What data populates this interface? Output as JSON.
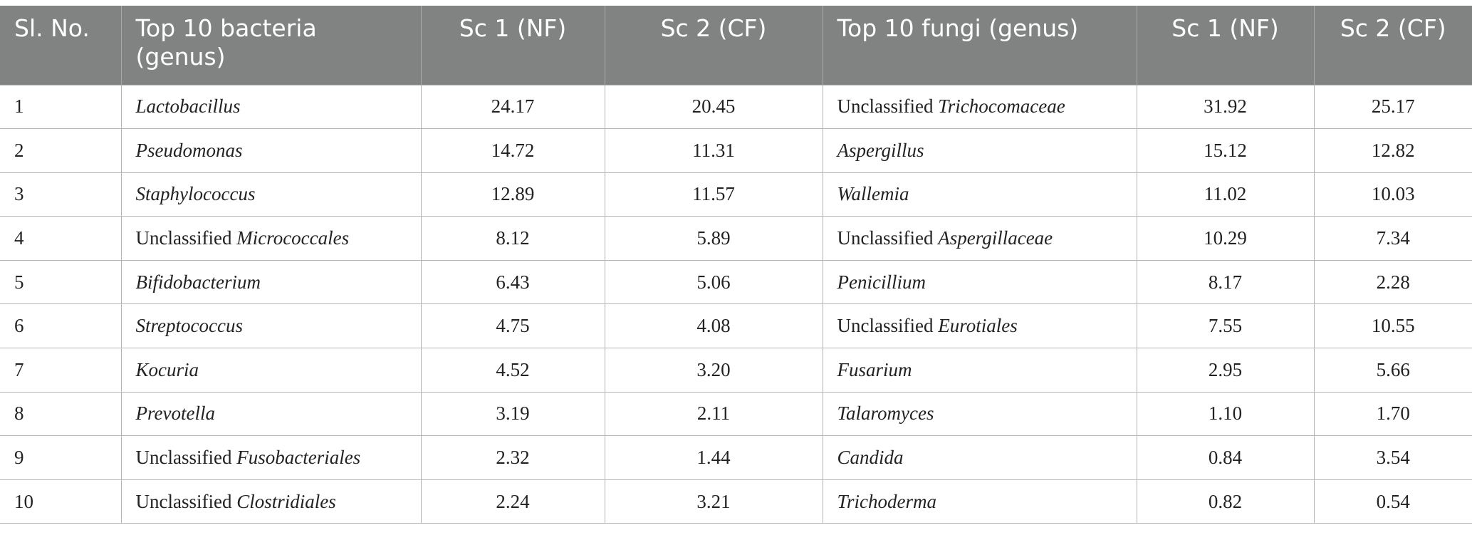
{
  "headers": {
    "sl_no": "Sl. No.",
    "bacteria": "Top 10 bacteria (genus)",
    "b_sc1": "Sc 1 (NF)",
    "b_sc2": "Sc 2 (CF)",
    "fungi": "Top 10 fungi (genus)",
    "f_sc1": "Sc 1 (NF)",
    "f_sc2": "Sc 2 (CF)"
  },
  "rows": [
    {
      "no": "1",
      "b_pre": "",
      "b_name": "Lactobacillus",
      "b_sc1": "24.17",
      "b_sc2": "20.45",
      "f_pre": "Unclassified ",
      "f_name": "Trichocomaceae",
      "f_sc1": "31.92",
      "f_sc2": "25.17"
    },
    {
      "no": "2",
      "b_pre": "",
      "b_name": "Pseudomonas",
      "b_sc1": "14.72",
      "b_sc2": "11.31",
      "f_pre": "",
      "f_name": "Aspergillus",
      "f_sc1": "15.12",
      "f_sc2": "12.82"
    },
    {
      "no": "3",
      "b_pre": "",
      "b_name": "Staphylococcus",
      "b_sc1": "12.89",
      "b_sc2": "11.57",
      "f_pre": "",
      "f_name": "Wallemia",
      "f_sc1": "11.02",
      "f_sc2": "10.03"
    },
    {
      "no": "4",
      "b_pre": "Unclassified ",
      "b_name": "Micrococcales",
      "b_sc1": "8.12",
      "b_sc2": "5.89",
      "f_pre": "Unclassified ",
      "f_name": "Aspergillaceae",
      "f_sc1": "10.29",
      "f_sc2": "7.34"
    },
    {
      "no": "5",
      "b_pre": "",
      "b_name": "Bifidobacterium",
      "b_sc1": "6.43",
      "b_sc2": "5.06",
      "f_pre": "",
      "f_name": "Penicillium",
      "f_sc1": "8.17",
      "f_sc2": "2.28"
    },
    {
      "no": "6",
      "b_pre": "",
      "b_name": "Streptococcus",
      "b_sc1": "4.75",
      "b_sc2": "4.08",
      "f_pre": "Unclassified ",
      "f_name": "Eurotiales",
      "f_sc1": "7.55",
      "f_sc2": "10.55"
    },
    {
      "no": "7",
      "b_pre": "",
      "b_name": "Kocuria",
      "b_sc1": "4.52",
      "b_sc2": "3.20",
      "f_pre": "",
      "f_name": "Fusarium",
      "f_sc1": "2.95",
      "f_sc2": "5.66"
    },
    {
      "no": "8",
      "b_pre": "",
      "b_name": "Prevotella",
      "b_sc1": "3.19",
      "b_sc2": "2.11",
      "f_pre": "",
      "f_name": "Talaromyces",
      "f_sc1": "1.10",
      "f_sc2": "1.70"
    },
    {
      "no": "9",
      "b_pre": "Unclassified ",
      "b_name": "Fusobacteriales",
      "b_sc1": "2.32",
      "b_sc2": "1.44",
      "f_pre": "",
      "f_name": "Candida",
      "f_sc1": "0.84",
      "f_sc2": "3.54"
    },
    {
      "no": "10",
      "b_pre": "Unclassified ",
      "b_name": "Clostridiales",
      "b_sc1": "2.24",
      "b_sc2": "3.21",
      "f_pre": "",
      "f_name": "Trichoderma",
      "f_sc1": "0.82",
      "f_sc2": "0.54"
    }
  ],
  "colors": {
    "header_bg": "#818282",
    "header_text": "#ffffff",
    "grid": "#b4b4b4"
  }
}
